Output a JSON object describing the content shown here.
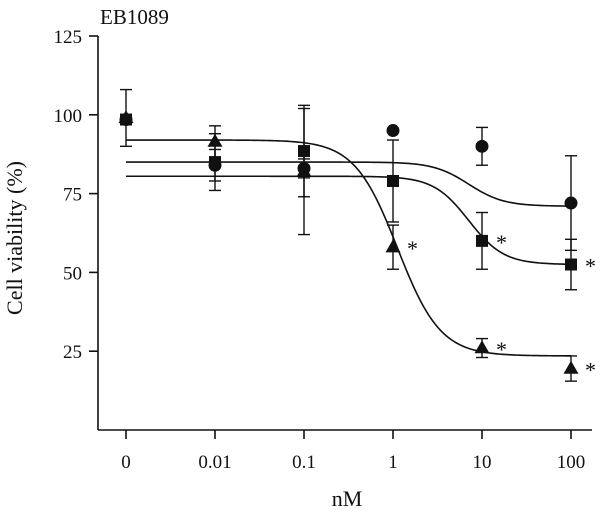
{
  "chart_data": {
    "type": "scatter",
    "title": "EB1089",
    "xlabel": "nM",
    "ylabel": "Cell viability (%)",
    "categories": [
      "0",
      "0.01",
      "0.1",
      "1",
      "10",
      "100"
    ],
    "y_ticks": [
      25,
      50,
      75,
      100,
      125
    ],
    "ylim": [
      0,
      125
    ],
    "x_scale": "categorical (log-spaced doses)",
    "grid": false,
    "legend": "none",
    "series": [
      {
        "marker": "circle",
        "values": [
          98.5,
          84,
          83,
          95,
          90,
          72
        ],
        "errors": [
          null,
          5,
          3,
          null,
          6,
          15
        ],
        "fit_curve": {
          "top": 85,
          "bottom": 71,
          "ec50_x_index": 3.85,
          "hill": 2.2
        },
        "significance": [
          null,
          null,
          null,
          null,
          null,
          null
        ]
      },
      {
        "marker": "square",
        "values": [
          98.5,
          85,
          88.5,
          79,
          60,
          52.5
        ],
        "errors": [
          null,
          9,
          14.5,
          13,
          9,
          8
        ],
        "fit_curve": {
          "top": 80.5,
          "bottom": 52.5,
          "ec50_x_index": 3.85,
          "hill": 2.2
        },
        "significance": [
          null,
          null,
          null,
          null,
          "*",
          "*"
        ]
      },
      {
        "marker": "triangle",
        "values": [
          99,
          91.5,
          82,
          58,
          26,
          19.5
        ],
        "errors": [
          9,
          5,
          20,
          7,
          3,
          4
        ],
        "fit_curve": {
          "top": 92,
          "bottom": 23.5,
          "ec50_x_index": 3.05,
          "hill": 1.8
        },
        "significance": [
          null,
          null,
          null,
          "*",
          "*",
          "*"
        ]
      }
    ]
  }
}
